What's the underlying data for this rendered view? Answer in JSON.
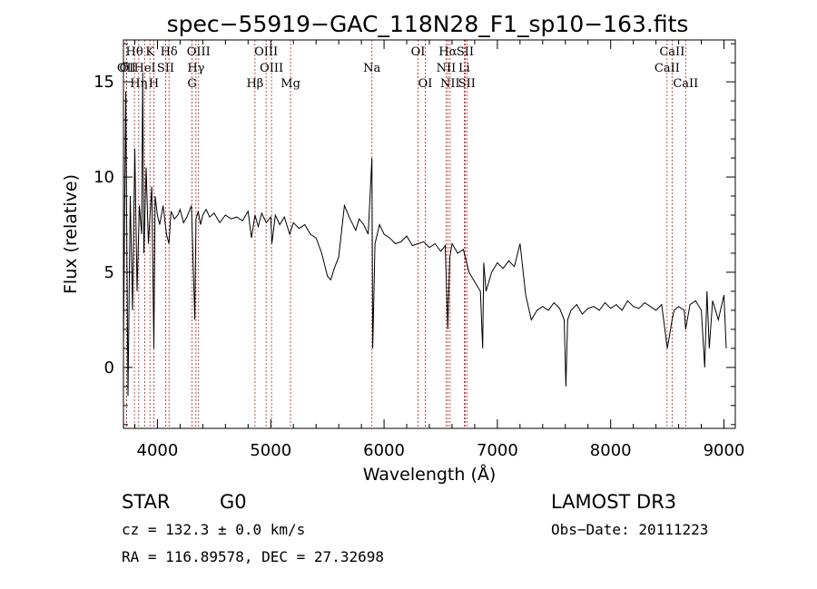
{
  "chart_data": {
    "type": "line",
    "title": "spec−55919−GAC_118N28_F1_sp10−163.fits",
    "xlabel": "Wavelength (Å)",
    "ylabel": "Flux (relative)",
    "xlim": [
      3700,
      9100
    ],
    "ylim": [
      -3.2,
      17.2
    ],
    "xticks": [
      4000,
      5000,
      6000,
      7000,
      8000,
      9000
    ],
    "yticks": [
      0,
      5,
      10,
      15
    ],
    "series": [
      {
        "name": "flux",
        "x": [
          3700,
          3720,
          3740,
          3760,
          3780,
          3800,
          3820,
          3840,
          3860,
          3870,
          3880,
          3900,
          3920,
          3935,
          3950,
          3968,
          3980,
          4000,
          4020,
          4050,
          4080,
          4101,
          4120,
          4150,
          4180,
          4200,
          4230,
          4260,
          4300,
          4330,
          4340,
          4360,
          4380,
          4400,
          4430,
          4460,
          4500,
          4550,
          4600,
          4650,
          4700,
          4750,
          4800,
          4830,
          4861,
          4890,
          4920,
          4960,
          5000,
          5010,
          5040,
          5080,
          5120,
          5167,
          5200,
          5250,
          5300,
          5350,
          5400,
          5450,
          5500,
          5530,
          5560,
          5600,
          5650,
          5700,
          5750,
          5780,
          5820,
          5860,
          5893,
          5900,
          5920,
          5960,
          6000,
          6050,
          6100,
          6150,
          6200,
          6250,
          6300,
          6350,
          6400,
          6450,
          6500,
          6540,
          6563,
          6580,
          6600,
          6650,
          6700,
          6750,
          6800,
          6850,
          6870,
          6880,
          6900,
          6950,
          7000,
          7050,
          7100,
          7150,
          7200,
          7250,
          7300,
          7350,
          7400,
          7450,
          7500,
          7550,
          7590,
          7605,
          7620,
          7650,
          7700,
          7750,
          7800,
          7850,
          7900,
          7950,
          8000,
          8050,
          8100,
          8150,
          8200,
          8250,
          8300,
          8350,
          8400,
          8450,
          8500,
          8542,
          8560,
          8600,
          8650,
          8662,
          8700,
          8750,
          8800,
          8830,
          8850,
          8870,
          8900,
          8950,
          9000,
          9020
        ],
        "y": [
          1.0,
          14.5,
          -1.5,
          9.0,
          3.0,
          11.5,
          4.0,
          8.5,
          7.0,
          15.5,
          6.0,
          10.5,
          6.5,
          8.0,
          9.5,
          1.0,
          9.0,
          8.0,
          7.5,
          8.5,
          7.0,
          6.5,
          8.2,
          7.8,
          8.0,
          8.3,
          7.6,
          7.9,
          8.5,
          2.5,
          7.8,
          8.2,
          7.5,
          8.0,
          8.3,
          7.9,
          8.1,
          7.6,
          8.0,
          7.8,
          7.9,
          7.7,
          8.2,
          6.8,
          8.0,
          7.4,
          8.1,
          7.6,
          7.9,
          6.5,
          8.0,
          7.5,
          7.9,
          7.0,
          7.6,
          7.3,
          7.5,
          7.0,
          6.8,
          6.0,
          4.8,
          4.6,
          5.2,
          5.8,
          8.5,
          7.8,
          7.2,
          7.8,
          7.5,
          7.0,
          11.0,
          1.0,
          6.5,
          7.5,
          7.0,
          6.8,
          6.5,
          6.6,
          6.9,
          6.4,
          6.5,
          6.6,
          6.3,
          6.5,
          6.1,
          6.4,
          2.0,
          5.8,
          6.5,
          6.0,
          6.2,
          5.0,
          4.5,
          4.0,
          1.0,
          5.5,
          4.0,
          5.0,
          5.5,
          5.2,
          5.6,
          5.3,
          6.5,
          3.8,
          2.5,
          3.0,
          3.2,
          3.0,
          3.4,
          3.1,
          2.5,
          -1.0,
          2.5,
          3.0,
          3.3,
          2.8,
          3.1,
          3.2,
          3.0,
          3.4,
          3.1,
          3.3,
          3.0,
          3.5,
          3.2,
          3.1,
          3.4,
          3.2,
          3.0,
          3.3,
          1.0,
          2.5,
          3.0,
          3.2,
          3.0,
          2.0,
          3.3,
          3.5,
          3.0,
          0.0,
          4.0,
          1.0,
          3.5,
          2.5,
          3.8,
          1.0
        ]
      }
    ],
    "line_markers": [
      {
        "name": "OII",
        "x": 3727,
        "row": 2
      },
      {
        "name": "Hθ",
        "x": 3797,
        "row": 1
      },
      {
        "name": "OI",
        "x": 3727,
        "row": 2
      },
      {
        "name": "HeI",
        "x": 3889,
        "row": 2
      },
      {
        "name": "Hη",
        "x": 3835,
        "row": 3
      },
      {
        "name": "K",
        "x": 3934,
        "row": 1
      },
      {
        "name": "H",
        "x": 3968,
        "row": 3
      },
      {
        "name": "SII",
        "x": 4072,
        "row": 2
      },
      {
        "name": "Hδ",
        "x": 4102,
        "row": 1
      },
      {
        "name": "OIII",
        "x": 4363,
        "row": 1
      },
      {
        "name": "Hγ",
        "x": 4340,
        "row": 2
      },
      {
        "name": "G",
        "x": 4305,
        "row": 3
      },
      {
        "name": "OIII",
        "x": 4959,
        "row": 1
      },
      {
        "name": "OIII",
        "x": 5007,
        "row": 2
      },
      {
        "name": "Hβ",
        "x": 4861,
        "row": 3
      },
      {
        "name": "Mg",
        "x": 5175,
        "row": 3
      },
      {
        "name": "Na",
        "x": 5893,
        "row": 2
      },
      {
        "name": "OI",
        "x": 6300,
        "row": 1
      },
      {
        "name": "OI",
        "x": 6364,
        "row": 3
      },
      {
        "name": "Hα",
        "x": 6563,
        "row": 1
      },
      {
        "name": "SII",
        "x": 6716,
        "row": 1
      },
      {
        "name": "NII",
        "x": 6548,
        "row": 2
      },
      {
        "name": "Li",
        "x": 6708,
        "row": 2
      },
      {
        "name": "NII",
        "x": 6583,
        "row": 3
      },
      {
        "name": "SII",
        "x": 6731,
        "row": 3
      },
      {
        "name": "CaII",
        "x": 8542,
        "row": 1
      },
      {
        "name": "CaII",
        "x": 8498,
        "row": 2
      },
      {
        "name": "CaII",
        "x": 8662,
        "row": 3
      }
    ],
    "grid": false
  },
  "info": {
    "class": "STAR",
    "subclass": "G0",
    "survey": "LAMOST DR3",
    "velocity": "cz = 132.3 ± 0.0 km/s",
    "obs_date": "Obs−Date: 20111223",
    "coords": "RA = 116.89578, DEC =  27.32698"
  },
  "colors": {
    "spectrum": "#000000",
    "marker": "#b22222",
    "axis": "#000000"
  }
}
